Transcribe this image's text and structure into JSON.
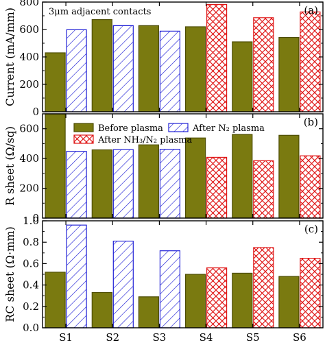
{
  "colors": {
    "before": "#7a7a10",
    "after_n2": "#1f1fd6",
    "after_nh3": "#e01818"
  },
  "chart_data": [
    {
      "type": "bar",
      "panel_tag": "(a)",
      "annotation": "3μm adjacent contacts",
      "categories": [
        "S1",
        "S2",
        "S3",
        "S4",
        "S5",
        "S6"
      ],
      "ylabel": "Current (mA/mm)",
      "ylim": [
        0,
        800
      ],
      "yticks": [
        0,
        200,
        400,
        600,
        800
      ],
      "series": [
        {
          "key": "before",
          "values": [
            430,
            672,
            628,
            620,
            510,
            542
          ]
        },
        {
          "key": "after_n2",
          "values": [
            598,
            628,
            588,
            null,
            null,
            null
          ]
        },
        {
          "key": "after_nh3",
          "values": [
            null,
            null,
            null,
            782,
            686,
            728
          ]
        }
      ]
    },
    {
      "type": "bar",
      "panel_tag": "(b)",
      "categories": [
        "S1",
        "S2",
        "S3",
        "S4",
        "S5",
        "S6"
      ],
      "ylabel": "R sheet (Ω/sq)",
      "ylim": [
        0,
        700
      ],
      "yticks": [
        0,
        200,
        400,
        600
      ],
      "legend": {
        "placement": "top",
        "entries": [
          {
            "key": "before",
            "label": "Before plasma"
          },
          {
            "key": "after_n2",
            "label": "After N₂ plasma"
          },
          {
            "key": "after_nh3",
            "label": "After NH₃/N₂ plasma"
          }
        ]
      },
      "series": [
        {
          "key": "before",
          "values": [
            700,
            458,
            492,
            538,
            562,
            556
          ]
        },
        {
          "key": "after_n2",
          "values": [
            448,
            460,
            462,
            null,
            null,
            null
          ]
        },
        {
          "key": "after_nh3",
          "values": [
            null,
            null,
            null,
            408,
            385,
            418
          ]
        }
      ]
    },
    {
      "type": "bar",
      "panel_tag": "(c)",
      "categories": [
        "S1",
        "S2",
        "S3",
        "S4",
        "S5",
        "S6"
      ],
      "ylabel": "RC sheet (Ω·mm)",
      "ylim": [
        0,
        1.0
      ],
      "yticks": [
        0.0,
        0.2,
        0.4,
        0.6,
        0.8,
        1.0
      ],
      "series": [
        {
          "key": "before",
          "values": [
            0.52,
            0.33,
            0.29,
            0.5,
            0.51,
            0.48
          ]
        },
        {
          "key": "after_n2",
          "values": [
            0.96,
            0.81,
            0.72,
            null,
            null,
            null
          ]
        },
        {
          "key": "after_nh3",
          "values": [
            null,
            null,
            null,
            0.56,
            0.75,
            0.65
          ]
        }
      ]
    }
  ]
}
